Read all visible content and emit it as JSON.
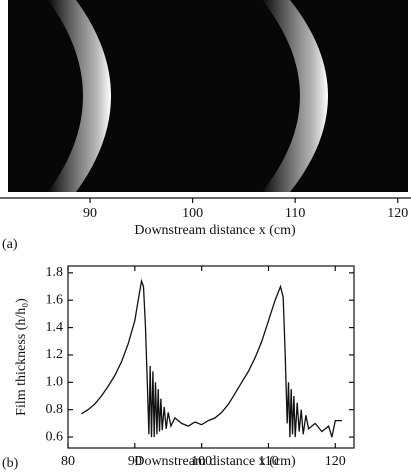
{
  "chart_data": [
    {
      "type": "image",
      "panel": "(a)",
      "xlabel": "Downstream distance  x (cm)",
      "xlim": [
        82,
        121
      ],
      "xticks": [
        90,
        100,
        110,
        120
      ]
    },
    {
      "type": "line",
      "panel": "(b)",
      "xlabel": "Downstream distance  x (cm)",
      "ylabel": "Film thickness (h/h₀)",
      "xlim": [
        80,
        122.8
      ],
      "xticks": [
        80,
        90,
        100,
        110,
        120
      ],
      "ylim": [
        0.52,
        1.85
      ],
      "yticks": [
        {
          "value": 0.6,
          "label": "0.6"
        },
        0.8,
        {
          "value": 1,
          "label": "1.0"
        },
        1.2,
        1.4,
        1.6,
        1.8
      ],
      "color": "#111111",
      "x": [
        82,
        83,
        84,
        85,
        86,
        87,
        88,
        89,
        90,
        90.5,
        91,
        91.3,
        91.6,
        91.9,
        92.1,
        92.3,
        92.5,
        92.7,
        92.9,
        93.1,
        93.3,
        93.5,
        93.7,
        93.9,
        94.1,
        94.4,
        94.7,
        95,
        95.4,
        96,
        97,
        98,
        99,
        100,
        101,
        102,
        103,
        104,
        105,
        106,
        107,
        108,
        109,
        110,
        111,
        111.8,
        112.2,
        112.5,
        112.8,
        113,
        113.2,
        113.4,
        113.6,
        113.8,
        114,
        114.3,
        114.6,
        114.9,
        115.2,
        115.6,
        116,
        117,
        118,
        119,
        119.5,
        120,
        121
      ],
      "values": [
        0.77,
        0.8,
        0.84,
        0.9,
        0.97,
        1.05,
        1.15,
        1.28,
        1.45,
        1.6,
        1.74,
        1.7,
        1.4,
        0.95,
        0.62,
        1.12,
        0.6,
        1.08,
        0.6,
        1.0,
        0.62,
        0.95,
        0.64,
        0.88,
        0.65,
        0.82,
        0.66,
        0.78,
        0.68,
        0.74,
        0.7,
        0.68,
        0.71,
        0.69,
        0.72,
        0.74,
        0.78,
        0.84,
        0.92,
        1.0,
        1.08,
        1.18,
        1.3,
        1.45,
        1.6,
        1.7,
        1.62,
        1.2,
        0.7,
        1.0,
        0.6,
        0.95,
        0.62,
        0.9,
        0.6,
        0.85,
        0.64,
        0.8,
        0.62,
        0.76,
        0.66,
        0.7,
        0.64,
        0.68,
        0.6,
        0.72,
        0.72
      ]
    }
  ]
}
